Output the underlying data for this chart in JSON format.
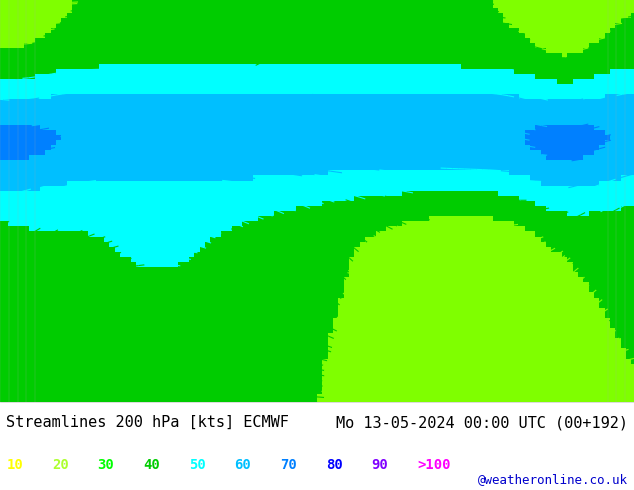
{
  "title_left": "Streamlines 200 hPa [kts] ECMWF",
  "title_right": "Mo 13-05-2024 00:00 UTC (00+192)",
  "credit": "@weatheronline.co.uk",
  "legend_values": [
    "10",
    "20",
    "30",
    "40",
    "50",
    "60",
    "70",
    "80",
    "90",
    ">100"
  ],
  "legend_colors": [
    "#ffff00",
    "#adff2f",
    "#00ff00",
    "#00cc00",
    "#00ffff",
    "#00bfff",
    "#0080ff",
    "#0000ff",
    "#8000ff",
    "#ff00ff"
  ],
  "bg_color": "#ffffff",
  "map_bg": "#f0f0f0",
  "title_fontsize": 11,
  "credit_fontsize": 9,
  "legend_fontsize": 10,
  "fig_width": 6.34,
  "fig_height": 4.9,
  "dpi": 100
}
